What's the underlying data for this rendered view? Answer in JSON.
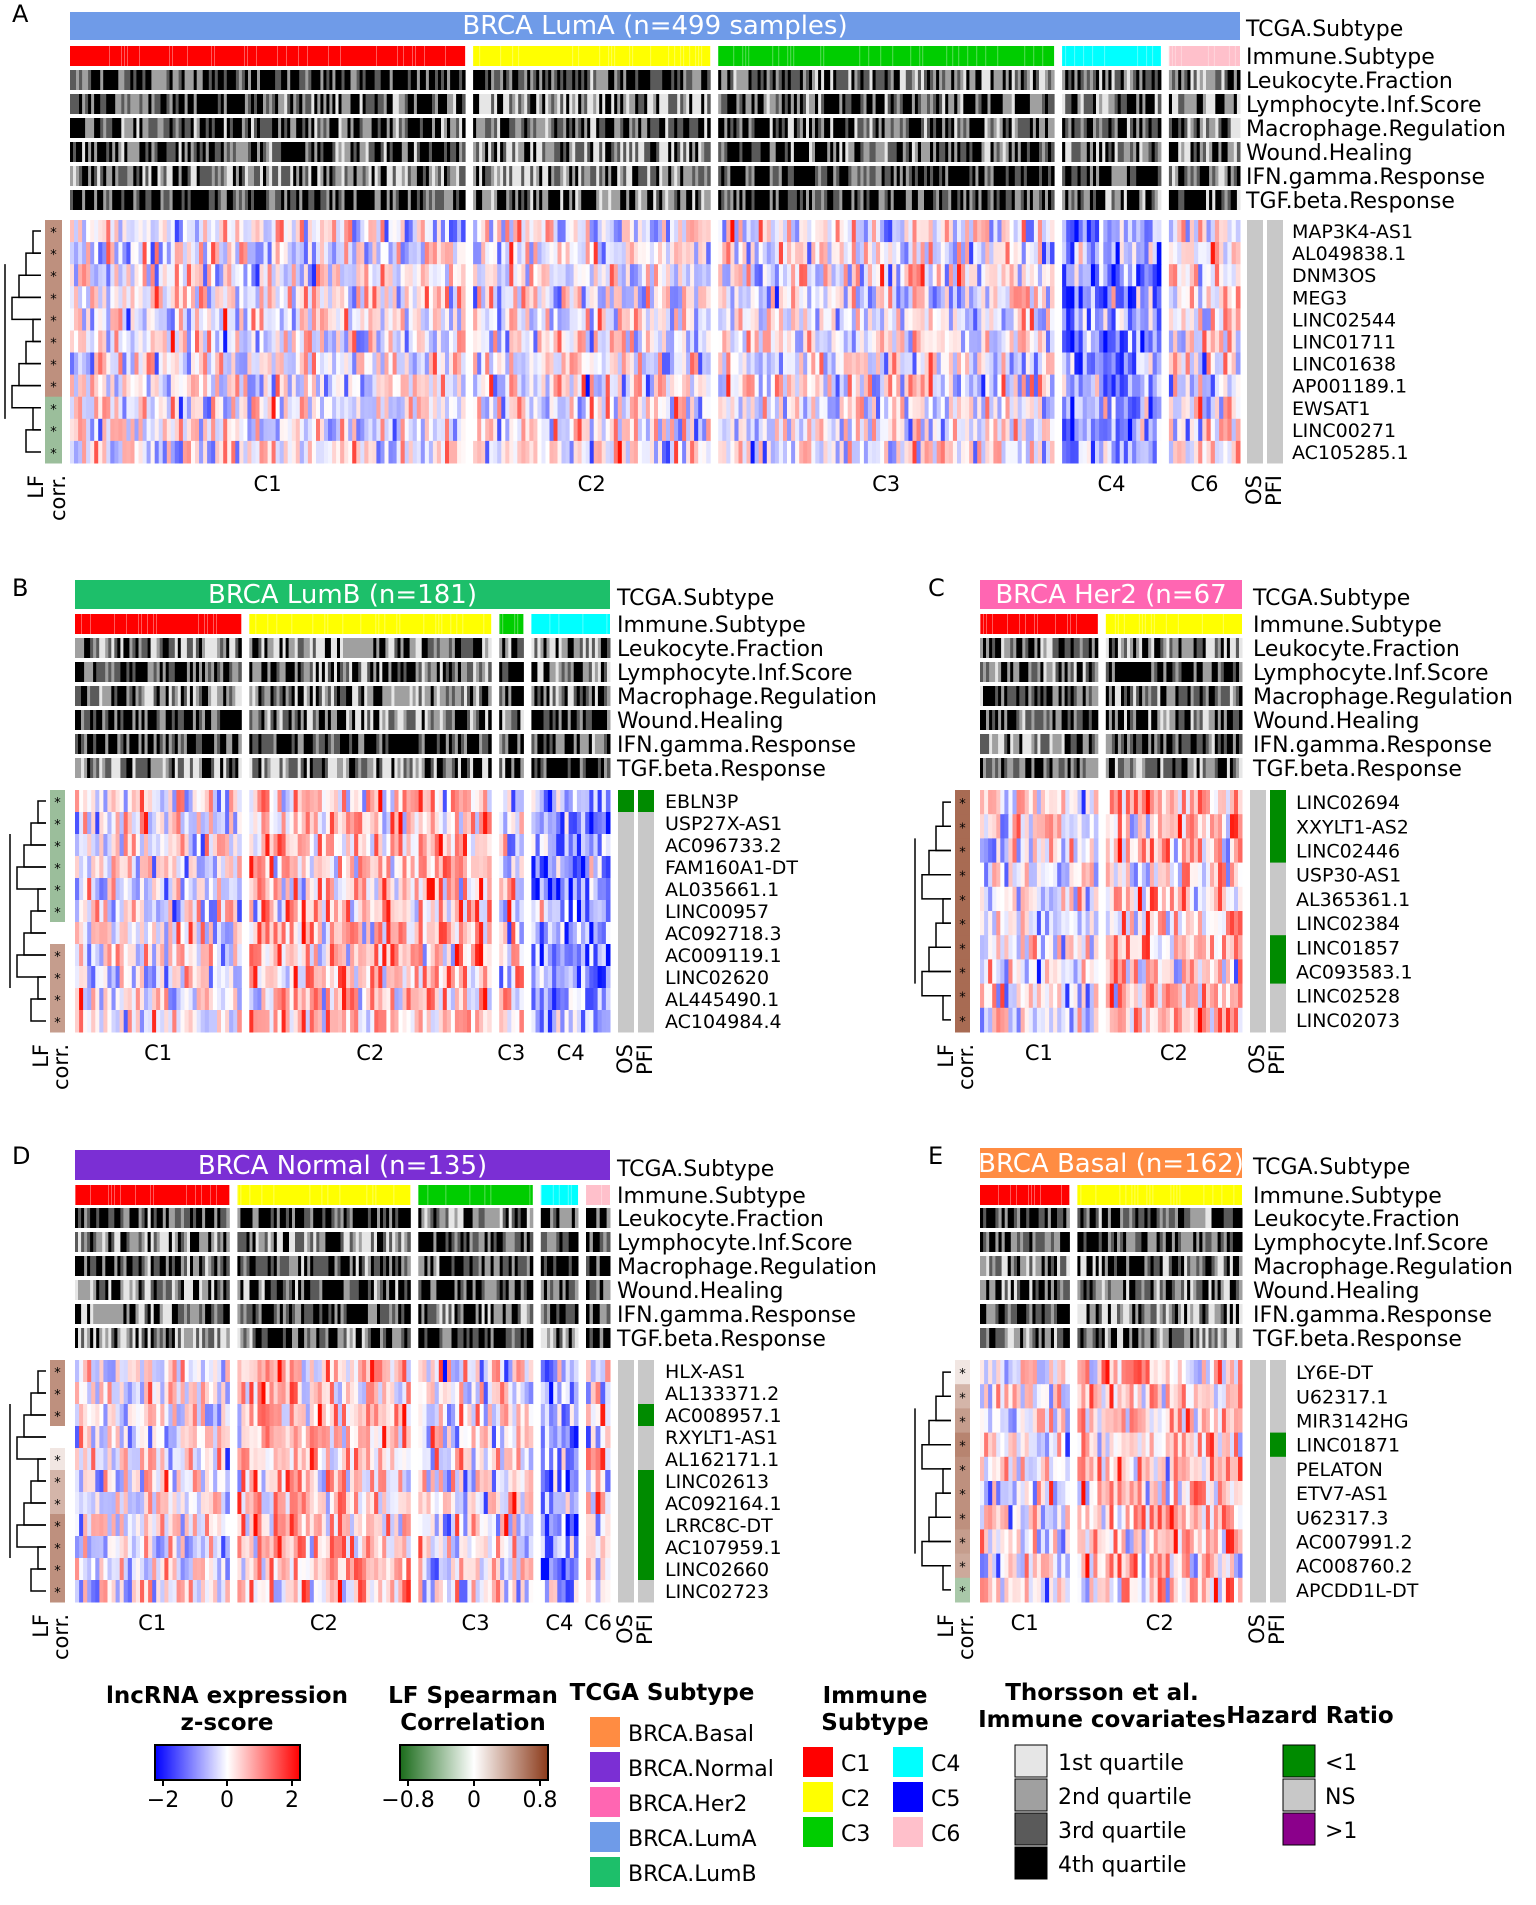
{
  "colors": {
    "immune": {
      "C1": "#ff0000",
      "C2": "#ffff00",
      "C3": "#00cd00",
      "C4": "#00ffff",
      "C5": "#0000ff",
      "C6": "#ffc0cb"
    },
    "tcga": {
      "BRCA.Basal": "#ff8c42",
      "BRCA.Normal": "#7b2fd4",
      "BRCA.Her2": "#ff66b2",
      "BRCA.LumA": "#6f9be8",
      "BRCA.LumB": "#1dbf6a"
    },
    "hazard": {
      "lt1": "#008b00",
      "NS": "#c8c8c8",
      "gt1": "#8b008b"
    }
  },
  "covariate_labels": [
    "TCGA.Subtype",
    "Immune.Subtype",
    "Leukocyte.Fraction",
    "Lymphocyte.Inf.Score",
    "Macrophage.Regulation",
    "Wound.Healing",
    "IFN.gamma.Response",
    "TGF.beta.Response"
  ],
  "chart_data": [
    {
      "panel": "A",
      "type": "heatmap",
      "title": "BRCA LumA (n=499 samples)",
      "tcga_subtype": "BRCA.LumA",
      "covariate_labels": [
        "TCGA.Subtype",
        "Immune.Subtype",
        "Leukocyte.Fraction",
        "Lymphocyte.Inf.Score",
        "Macrophage.Regulation",
        "Wound.Healing",
        "IFN.gamma.Response",
        "TGF.beta.Response"
      ],
      "clusters": [
        "C1",
        "C2",
        "C3",
        "C4",
        "C6"
      ],
      "cluster_weights": [
        100,
        60,
        85,
        25,
        18
      ],
      "genes": [
        "MAP3K4-AS1",
        "AL049838.1",
        "DNM3OS",
        "MEG3",
        "LINC02544",
        "LINC01711",
        "LINC01638",
        "AP001189.1",
        "EWSAT1",
        "LINC00271",
        "AC105285.1"
      ],
      "lf_corr": [
        0.45,
        0.45,
        0.45,
        0.45,
        0.45,
        0.45,
        0.45,
        0.45,
        -0.35,
        -0.35,
        -0.35
      ],
      "os_hr": [
        "NS",
        "NS",
        "NS",
        "NS",
        "NS",
        "NS",
        "NS",
        "NS",
        "NS",
        "NS",
        "NS"
      ],
      "pfi_hr": [
        "NS",
        "NS",
        "NS",
        "NS",
        "NS",
        "NS",
        "NS",
        "NS",
        "NS",
        "NS",
        "NS"
      ],
      "lf_label": "LF",
      "corr_label": "corr.",
      "os_label": "OS",
      "pfi_label": "PFI"
    },
    {
      "panel": "B",
      "type": "heatmap",
      "title": "BRCA LumB (n=181)",
      "tcga_subtype": "BRCA.LumB",
      "covariate_labels": [
        "TCGA.Subtype",
        "Immune.Subtype",
        "Leukocyte.Fraction",
        "Lymphocyte.Inf.Score",
        "Macrophage.Regulation",
        "Wound.Healing",
        "IFN.gamma.Response",
        "TGF.beta.Response"
      ],
      "clusters": [
        "C1",
        "C2",
        "C3",
        "C4"
      ],
      "cluster_weights": [
        55,
        80,
        8,
        26
      ],
      "genes": [
        "EBLN3P",
        "USP27X-AS1",
        "AC096733.2",
        "FAM160A1-DT",
        "AL035661.1",
        "LINC00957",
        "AC092718.3",
        "AC009119.1",
        "LINC02620",
        "AL445490.1",
        "AC104984.4"
      ],
      "lf_corr": [
        -0.35,
        -0.35,
        -0.35,
        -0.35,
        -0.35,
        -0.35,
        0.0,
        0.4,
        0.4,
        0.4,
        0.4
      ],
      "os_hr": [
        "<1",
        "NS",
        "NS",
        "NS",
        "NS",
        "NS",
        "NS",
        "NS",
        "NS",
        "NS",
        "NS"
      ],
      "pfi_hr": [
        "<1",
        "NS",
        "NS",
        "NS",
        "NS",
        "NS",
        "NS",
        "NS",
        "NS",
        "NS",
        "NS"
      ],
      "lf_label": "LF",
      "corr_label": "corr.",
      "os_label": "OS",
      "pfi_label": "PFI"
    },
    {
      "panel": "C",
      "type": "heatmap",
      "title": "BRCA Her2 (n=67",
      "tcga_subtype": "BRCA.Her2",
      "covariate_labels": [
        "TCGA.Subtype",
        "Immune.Subtype",
        "Leukocyte.Fraction",
        "Lymphocyte.Inf.Score",
        "Macrophage.Regulation",
        "Wound.Healing",
        "IFN.gamma.Response",
        "TGF.beta.Response"
      ],
      "clusters": [
        "C1",
        "C2"
      ],
      "cluster_weights": [
        45,
        52
      ],
      "genes": [
        "LINC02694",
        "XXYLT1-AS2",
        "LINC02446",
        "USP30-AS1",
        "AL365361.1",
        "LINC02384",
        "LINC01857",
        "AC093583.1",
        "LINC02528",
        "LINC02073"
      ],
      "lf_corr": [
        0.6,
        0.6,
        0.6,
        0.6,
        0.6,
        0.6,
        0.6,
        0.6,
        0.6,
        0.6
      ],
      "os_hr": [
        "NS",
        "NS",
        "NS",
        "NS",
        "NS",
        "NS",
        "NS",
        "NS",
        "NS",
        "NS"
      ],
      "pfi_hr": [
        "<1",
        "<1",
        "<1",
        "NS",
        "NS",
        "NS",
        "<1",
        "<1",
        "NS",
        "NS"
      ],
      "lf_label": "LF",
      "corr_label": "corr.",
      "os_label": "OS",
      "pfi_label": "PFI"
    },
    {
      "panel": "D",
      "type": "heatmap",
      "title": "BRCA Normal (n=135)",
      "tcga_subtype": "BRCA.Normal",
      "covariate_labels": [
        "TCGA.Subtype",
        "Immune.Subtype",
        "Leukocyte.Fraction",
        "Lymphocyte.Inf.Score",
        "Macrophage.Regulation",
        "Wound.Healing",
        "IFN.gamma.Response",
        "TGF.beta.Response"
      ],
      "clusters": [
        "C1",
        "C2",
        "C3",
        "C4",
        "C6"
      ],
      "cluster_weights": [
        58,
        65,
        43,
        14,
        9
      ],
      "genes": [
        "HLX-AS1",
        "AL133371.2",
        "AC008957.1",
        "RXYLT1-AS1",
        "AL162171.1",
        "LINC02613",
        "AC092164.1",
        "LRRC8C-DT",
        "AC107959.1",
        "LINC02660",
        "LINC02723"
      ],
      "lf_corr": [
        0.45,
        0.45,
        0.45,
        0.0,
        0.1,
        0.3,
        0.3,
        0.45,
        0.45,
        0.45,
        0.45
      ],
      "os_hr": [
        "NS",
        "NS",
        "NS",
        "NS",
        "NS",
        "NS",
        "NS",
        "NS",
        "NS",
        "NS",
        "NS"
      ],
      "pfi_hr": [
        "NS",
        "NS",
        "<1",
        "NS",
        "NS",
        "<1",
        "<1",
        "<1",
        "<1",
        "<1",
        "NS"
      ],
      "lf_label": "LF",
      "corr_label": "corr.",
      "os_label": "OS",
      "pfi_label": "PFI"
    },
    {
      "panel": "E",
      "type": "heatmap",
      "title": "BRCA Basal (n=162)",
      "tcga_subtype": "BRCA.Basal",
      "covariate_labels": [
        "TCGA.Subtype",
        "Immune.Subtype",
        "Leukocyte.Fraction",
        "Lymphocyte.Inf.Score",
        "Macrophage.Regulation",
        "Wound.Healing",
        "IFN.gamma.Response",
        "TGF.beta.Response"
      ],
      "clusters": [
        "C1",
        "C2"
      ],
      "cluster_weights": [
        38,
        70
      ],
      "genes": [
        "LY6E-DT",
        "U62317.1",
        "MIR3142HG",
        "LINC01871",
        "PELATON",
        "ETV7-AS1",
        "U62317.3",
        "AC007991.2",
        "AC008760.2",
        "APCDD1L-DT"
      ],
      "lf_corr": [
        0.1,
        0.3,
        0.4,
        0.5,
        0.45,
        0.45,
        0.45,
        0.4,
        0.35,
        -0.3
      ],
      "os_hr": [
        "NS",
        "NS",
        "NS",
        "NS",
        "NS",
        "NS",
        "NS",
        "NS",
        "NS",
        "NS"
      ],
      "pfi_hr": [
        "NS",
        "NS",
        "NS",
        "<1",
        "NS",
        "NS",
        "NS",
        "NS",
        "NS",
        "NS"
      ],
      "lf_label": "LF",
      "corr_label": "corr.",
      "os_label": "OS",
      "pfi_label": "PFI"
    }
  ],
  "legends": {
    "expression": {
      "title_line1": "lncRNA expression",
      "title_line2": "z-score",
      "min": -2,
      "max": 2,
      "ticks": [
        "−2",
        "0",
        "2"
      ]
    },
    "lf_corr": {
      "title_line1": "LF Spearman",
      "title_line2": "Correlation",
      "min": -0.8,
      "max": 0.8,
      "ticks": [
        "−0.8",
        "0",
        "0.8"
      ]
    },
    "tcga": {
      "title": "TCGA Subtype",
      "items": [
        "BRCA.Basal",
        "BRCA.Normal",
        "BRCA.Her2",
        "BRCA.LumA",
        "BRCA.LumB"
      ]
    },
    "immune": {
      "title_line1": "Immune",
      "title_line2": "Subtype",
      "items": [
        "C1",
        "C2",
        "C3",
        "C4",
        "C5",
        "C6"
      ]
    },
    "covariates": {
      "title_line1": "Thorsson et al.",
      "title_line2": "Immune covariates",
      "items": [
        "1st quartile",
        "2nd quartile",
        "3rd quartile",
        "4th quartile"
      ],
      "shades": [
        "#e6e6e6",
        "#a0a0a0",
        "#5a5a5a",
        "#000000"
      ]
    },
    "hazard": {
      "title": "Hazard Ratio",
      "items": [
        "<1",
        "NS",
        ">1"
      ]
    }
  }
}
